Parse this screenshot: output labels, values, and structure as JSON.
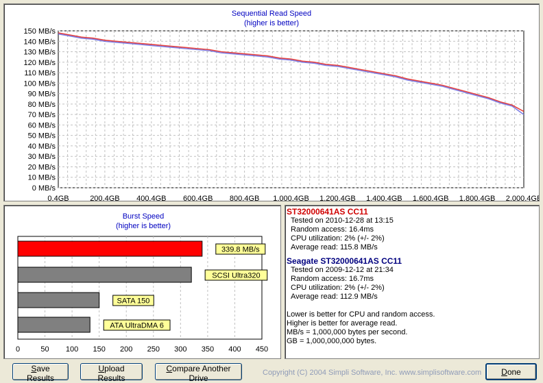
{
  "seq_chart": {
    "title": "Sequential Read Speed",
    "subtitle": "(higher is better)",
    "y_ticks": [
      "150 MB/s",
      "140 MB/s",
      "130 MB/s",
      "120 MB/s",
      "110 MB/s",
      "100 MB/s",
      "90 MB/s",
      "80 MB/s",
      "70 MB/s",
      "60 MB/s",
      "50 MB/s",
      "40 MB/s",
      "30 MB/s",
      "20 MB/s",
      "10 MB/s",
      "0 MB/s"
    ],
    "x_ticks": [
      "0.4GB",
      "200.4GB",
      "400.4GB",
      "600.4GB",
      "800.4GB",
      "1,000.4GB",
      "1,200.4GB",
      "1,400.4GB",
      "1,600.4GB",
      "1,800.4GB",
      "2,000.4GE"
    ],
    "colors": {
      "series1": "#e8403a",
      "series2": "#6a6ae0",
      "overlap": "#8a1a6a"
    }
  },
  "chart_data": [
    {
      "type": "line",
      "title": "Sequential Read Speed",
      "subtitle": "(higher is better)",
      "xlabel": "",
      "ylabel": "",
      "xlim": [
        0.4,
        2000.4
      ],
      "ylim": [
        0,
        150
      ],
      "grid": true,
      "x": [
        0.4,
        50,
        100,
        150,
        200,
        250,
        300,
        350,
        400,
        450,
        500,
        550,
        600,
        650,
        700,
        750,
        800,
        850,
        900,
        950,
        1000,
        1050,
        1100,
        1150,
        1200,
        1250,
        1300,
        1350,
        1400,
        1450,
        1500,
        1550,
        1600,
        1650,
        1700,
        1750,
        1800,
        1850,
        1900,
        1950,
        2000
      ],
      "series": [
        {
          "name": "ST32000641AS CC11",
          "color": "#e8403a",
          "values": [
            148,
            146,
            144,
            143,
            141,
            140,
            139,
            138,
            137,
            136,
            135,
            134,
            133,
            132,
            130,
            129,
            128,
            127,
            126,
            124,
            123,
            121,
            120,
            118,
            117,
            115,
            113,
            111,
            109,
            107,
            104,
            102,
            100,
            98,
            95,
            92,
            89,
            86,
            82,
            79,
            73
          ]
        },
        {
          "name": "Seagate ST32000641AS CC11",
          "color": "#6a6ae0",
          "values": [
            147,
            145,
            143,
            142,
            140,
            139,
            138,
            137,
            136,
            135,
            134,
            133,
            132,
            131,
            129,
            128,
            127,
            126,
            125,
            123,
            122,
            120,
            119,
            117,
            116,
            114,
            112,
            110,
            108,
            106,
            103,
            101,
            99,
            97,
            94,
            91,
            88,
            85,
            81,
            78,
            70
          ]
        }
      ]
    },
    {
      "type": "bar",
      "title": "Burst Speed",
      "subtitle": "(higher is better)",
      "orientation": "horizontal",
      "xlim": [
        0,
        450
      ],
      "x_ticks": [
        "0",
        "50",
        "100",
        "150",
        "200",
        "250",
        "300",
        "350",
        "400",
        "450"
      ],
      "categories": [
        "339.8 MB/s",
        "SCSI Ultra320",
        "SATA 150",
        "ATA UltraDMA 6"
      ],
      "values": [
        339.8,
        320,
        150,
        133
      ],
      "colors": [
        "#ff0000",
        "#808080",
        "#808080",
        "#808080"
      ]
    }
  ],
  "burst_chart": {
    "title": "Burst Speed",
    "subtitle": "(higher is better)",
    "x_ticks": [
      "0",
      "50",
      "100",
      "150",
      "200",
      "250",
      "300",
      "350",
      "400",
      "450"
    ],
    "bar_labels": [
      "339.8 MB/s",
      "SCSI Ultra320",
      "SATA 150",
      "ATA UltraDMA 6"
    ]
  },
  "info": {
    "drive1": {
      "name": "ST32000641AS  CC11",
      "color": "#d00000",
      "tested": "Tested on 2010-12-28 at 13:15",
      "random": "Random access: 16.4ms",
      "cpu": "CPU utilization: 2% (+/- 2%)",
      "avg": "Average read: 115.8 MB/s"
    },
    "drive2": {
      "name": "Seagate ST32000641AS  CC11",
      "color": "#00007f",
      "tested": "Tested on 2009-12-12 at 21:34",
      "random": "Random access: 16.7ms",
      "cpu": "CPU utilization: 2% (+/- 2%)",
      "avg": "Average read: 112.9 MB/s"
    },
    "notes": [
      "Lower is better for CPU and random access.",
      "Higher is better for average read.",
      "MB/s = 1,000,000 bytes per second.",
      "GB = 1,000,000,000 bytes."
    ]
  },
  "buttons": {
    "save": {
      "hot": "S",
      "rest": "ave Results"
    },
    "upload": {
      "hot": "U",
      "rest": "pload Results"
    },
    "compare": {
      "hot": "C",
      "rest": "ompare Another Drive"
    },
    "done": {
      "hot": "D",
      "rest": "one"
    }
  },
  "copyright": "Copyright (C) 2004 Simpli Software, Inc. www.simplisoftware.com"
}
